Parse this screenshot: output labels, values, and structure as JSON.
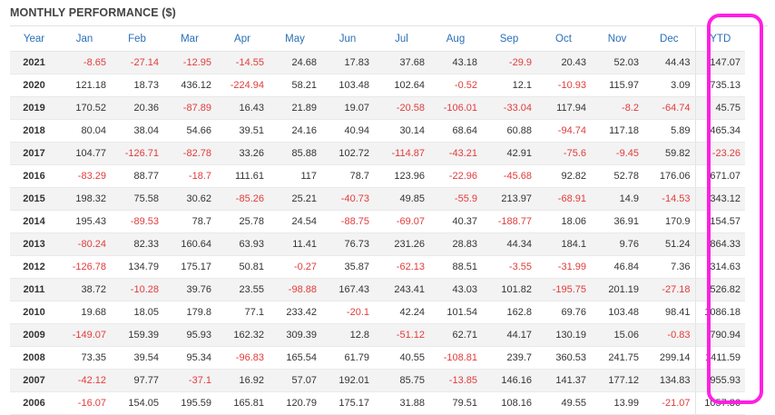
{
  "title": "MONTHLY PERFORMANCE ($)",
  "colors": {
    "header_text": "#2a6fb8",
    "negative": "#e23b3b",
    "highlight": "#ff1fe3"
  },
  "columns": [
    "Year",
    "Jan",
    "Feb",
    "Mar",
    "Apr",
    "May",
    "Jun",
    "Jul",
    "Aug",
    "Sep",
    "Oct",
    "Nov",
    "Dec",
    "YTD"
  ],
  "rows": [
    [
      "2021",
      "-8.65",
      "-27.14",
      "-12.95",
      "-14.55",
      "24.68",
      "17.83",
      "37.68",
      "43.18",
      "-29.9",
      "20.43",
      "52.03",
      "44.43",
      "147.07"
    ],
    [
      "2020",
      "121.18",
      "18.73",
      "436.12",
      "-224.94",
      "58.21",
      "103.48",
      "102.64",
      "-0.52",
      "12.1",
      "-10.93",
      "115.97",
      "3.09",
      "735.13"
    ],
    [
      "2019",
      "170.52",
      "20.36",
      "-87.89",
      "16.43",
      "21.89",
      "19.07",
      "-20.58",
      "-106.01",
      "-33.04",
      "117.94",
      "-8.2",
      "-64.74",
      "45.75"
    ],
    [
      "2018",
      "80.04",
      "38.04",
      "54.66",
      "39.51",
      "24.16",
      "40.94",
      "30.14",
      "68.64",
      "60.88",
      "-94.74",
      "117.18",
      "5.89",
      "465.34"
    ],
    [
      "2017",
      "104.77",
      "-126.71",
      "-82.78",
      "33.26",
      "85.88",
      "102.72",
      "-114.87",
      "-43.21",
      "42.91",
      "-75.6",
      "-9.45",
      "59.82",
      "-23.26"
    ],
    [
      "2016",
      "-83.29",
      "88.77",
      "-18.7",
      "111.61",
      "117",
      "78.7",
      "123.96",
      "-22.96",
      "-45.68",
      "92.82",
      "52.78",
      "176.06",
      "671.07"
    ],
    [
      "2015",
      "198.32",
      "75.58",
      "30.62",
      "-85.26",
      "25.21",
      "-40.73",
      "49.85",
      "-55.9",
      "213.97",
      "-68.91",
      "14.9",
      "-14.53",
      "343.12"
    ],
    [
      "2014",
      "195.43",
      "-89.53",
      "78.7",
      "25.78",
      "24.54",
      "-88.75",
      "-69.07",
      "40.37",
      "-188.77",
      "18.06",
      "36.91",
      "170.9",
      "154.57"
    ],
    [
      "2013",
      "-80.24",
      "82.33",
      "160.64",
      "63.93",
      "11.41",
      "76.73",
      "231.26",
      "28.83",
      "44.34",
      "184.1",
      "9.76",
      "51.24",
      "864.33"
    ],
    [
      "2012",
      "-126.78",
      "134.79",
      "175.17",
      "50.81",
      "-0.27",
      "35.87",
      "-62.13",
      "88.51",
      "-3.55",
      "-31.99",
      "46.84",
      "7.36",
      "314.63"
    ],
    [
      "2011",
      "38.72",
      "-10.28",
      "39.76",
      "23.55",
      "-98.88",
      "167.43",
      "243.41",
      "43.03",
      "101.82",
      "-195.75",
      "201.19",
      "-27.18",
      "526.82"
    ],
    [
      "2010",
      "19.68",
      "18.05",
      "179.8",
      "77.1",
      "233.42",
      "-20.1",
      "42.24",
      "101.54",
      "162.8",
      "69.76",
      "103.48",
      "98.41",
      "1086.18"
    ],
    [
      "2009",
      "-149.07",
      "159.39",
      "95.93",
      "162.32",
      "309.39",
      "12.8",
      "-51.12",
      "62.71",
      "44.17",
      "130.19",
      "15.06",
      "-0.83",
      "790.94"
    ],
    [
      "2008",
      "73.35",
      "39.54",
      "95.34",
      "-96.83",
      "165.54",
      "61.79",
      "40.55",
      "-108.81",
      "239.7",
      "360.53",
      "241.75",
      "299.14",
      "1411.59"
    ],
    [
      "2007",
      "-42.12",
      "97.77",
      "-37.1",
      "16.92",
      "57.07",
      "192.01",
      "85.75",
      "-13.85",
      "146.16",
      "141.37",
      "177.12",
      "134.83",
      "955.93"
    ],
    [
      "2006",
      "-16.07",
      "154.05",
      "195.59",
      "165.81",
      "120.79",
      "175.17",
      "31.88",
      "79.51",
      "108.16",
      "49.55",
      "13.99",
      "-21.07",
      "1057.36"
    ]
  ]
}
